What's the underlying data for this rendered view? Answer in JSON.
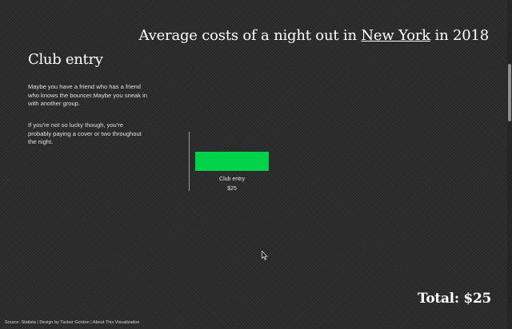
{
  "title": {
    "prefix": "Average costs of a night out in ",
    "city_link": "New York",
    "suffix": " in 2018"
  },
  "section": {
    "title": "Club entry",
    "paragraphs": [
      "Maybe you have a friend who has a friend who knows the bouncer.Maybe you sneak in with another group.",
      "If you're not so lucky though, you're probably paying a cover or two throughout the night."
    ]
  },
  "chart_data": {
    "type": "bar",
    "categories": [
      "Club entry"
    ],
    "values": [
      25
    ],
    "value_labels": [
      "$25"
    ],
    "colors": [
      "#00d24a"
    ]
  },
  "total": {
    "text": "Total: $25"
  },
  "footer": {
    "source": "Source: Statista",
    "separator": "|",
    "design": "Design by Tucker Gordon",
    "about": "About This Visualization"
  },
  "theme": {
    "background": "#2c2c2c",
    "bar_color": "#00d24a",
    "text": "#ffffff"
  },
  "icons": {
    "cursor": "mouse-cursor-icon"
  }
}
